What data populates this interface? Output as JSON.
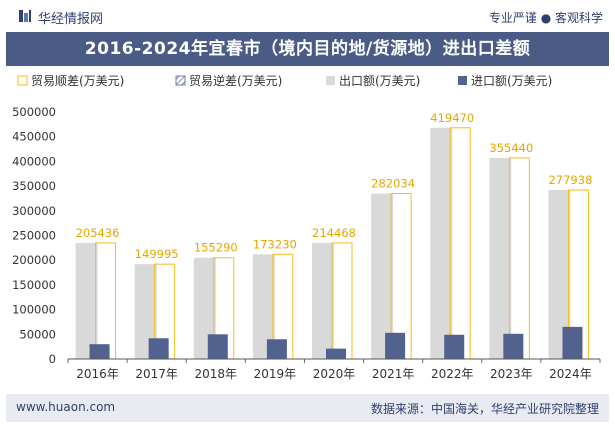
{
  "header": {
    "brand": "华经情报网",
    "tagline": "专业严谨 ● 客观科学"
  },
  "colors": {
    "title_bg": "#4a5b86",
    "export": "#d9d9d9",
    "import": "#52628f",
    "surplus_border": "#f2bd1d",
    "data_label": "#e3a700"
  },
  "chart_data": {
    "type": "bar",
    "title": "2016-2024年宜春市（境内目的地/货源地）进出口差额",
    "categories": [
      "2016年",
      "2017年",
      "2018年",
      "2019年",
      "2020年",
      "2021年",
      "2022年",
      "2023年",
      "2024年"
    ],
    "series": [
      {
        "name": "贸易顺差(万美元)",
        "values": [
          205436,
          149995,
          155290,
          173230,
          214468,
          282034,
          419470,
          355440,
          277938
        ]
      },
      {
        "name": "贸易逆差(万美元)",
        "values": [
          0,
          0,
          0,
          0,
          0,
          0,
          0,
          0,
          0
        ]
      },
      {
        "name": "出口额(万美元)",
        "values": [
          235000,
          192000,
          205000,
          212000,
          235000,
          335000,
          468000,
          407000,
          342000
        ]
      },
      {
        "name": "进口额(万美元)",
        "values": [
          30000,
          42000,
          50000,
          40000,
          21000,
          53000,
          49000,
          51000,
          65000
        ]
      }
    ],
    "data_labels": [
      "205436",
      "149995",
      "155290",
      "173230",
      "214468",
      "282034",
      "419470",
      "355440",
      "277938"
    ],
    "yticks": [
      "0",
      "50000",
      "100000",
      "150000",
      "200000",
      "250000",
      "300000",
      "350000",
      "400000",
      "450000",
      "500000"
    ],
    "ylim": [
      0,
      500000
    ],
    "legend_position": "top"
  },
  "footer": {
    "url": "www.huaon.com",
    "source": "数据来源：中国海关，华经产业研究院整理"
  }
}
